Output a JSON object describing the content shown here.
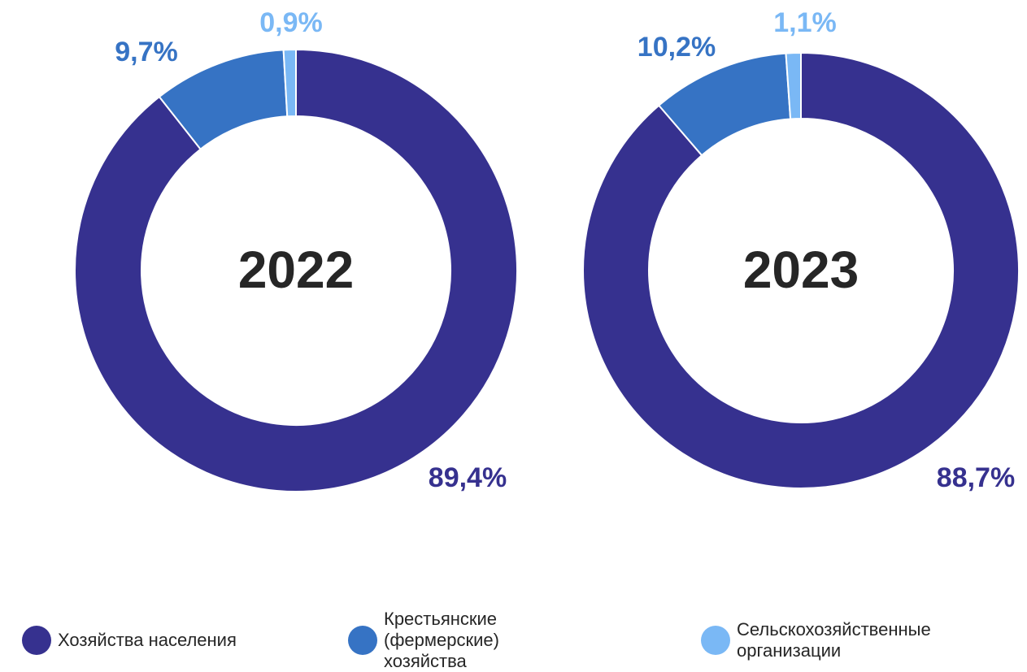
{
  "chart_data": [
    {
      "type": "donut",
      "title": "2022",
      "categories": [
        "Хозяйства населения",
        "Крестьянские (фермерские) хозяйства",
        "Сельскохозяйственные организации"
      ],
      "values": [
        89.4,
        9.7,
        0.9
      ],
      "value_labels": [
        "89,4%",
        "9,7%",
        "0,9%"
      ],
      "colors": [
        "#36318f",
        "#3673c4",
        "#7ab8f5"
      ]
    },
    {
      "type": "donut",
      "title": "2023",
      "categories": [
        "Хозяйства населения",
        "Крестьянские (фермерские) хозяйства",
        "Сельскохозяйственные организации"
      ],
      "values": [
        88.7,
        10.2,
        1.1
      ],
      "value_labels": [
        "88,7%",
        "10,2%",
        "1,1%"
      ],
      "colors": [
        "#36318f",
        "#3673c4",
        "#7ab8f5"
      ]
    }
  ]
}
